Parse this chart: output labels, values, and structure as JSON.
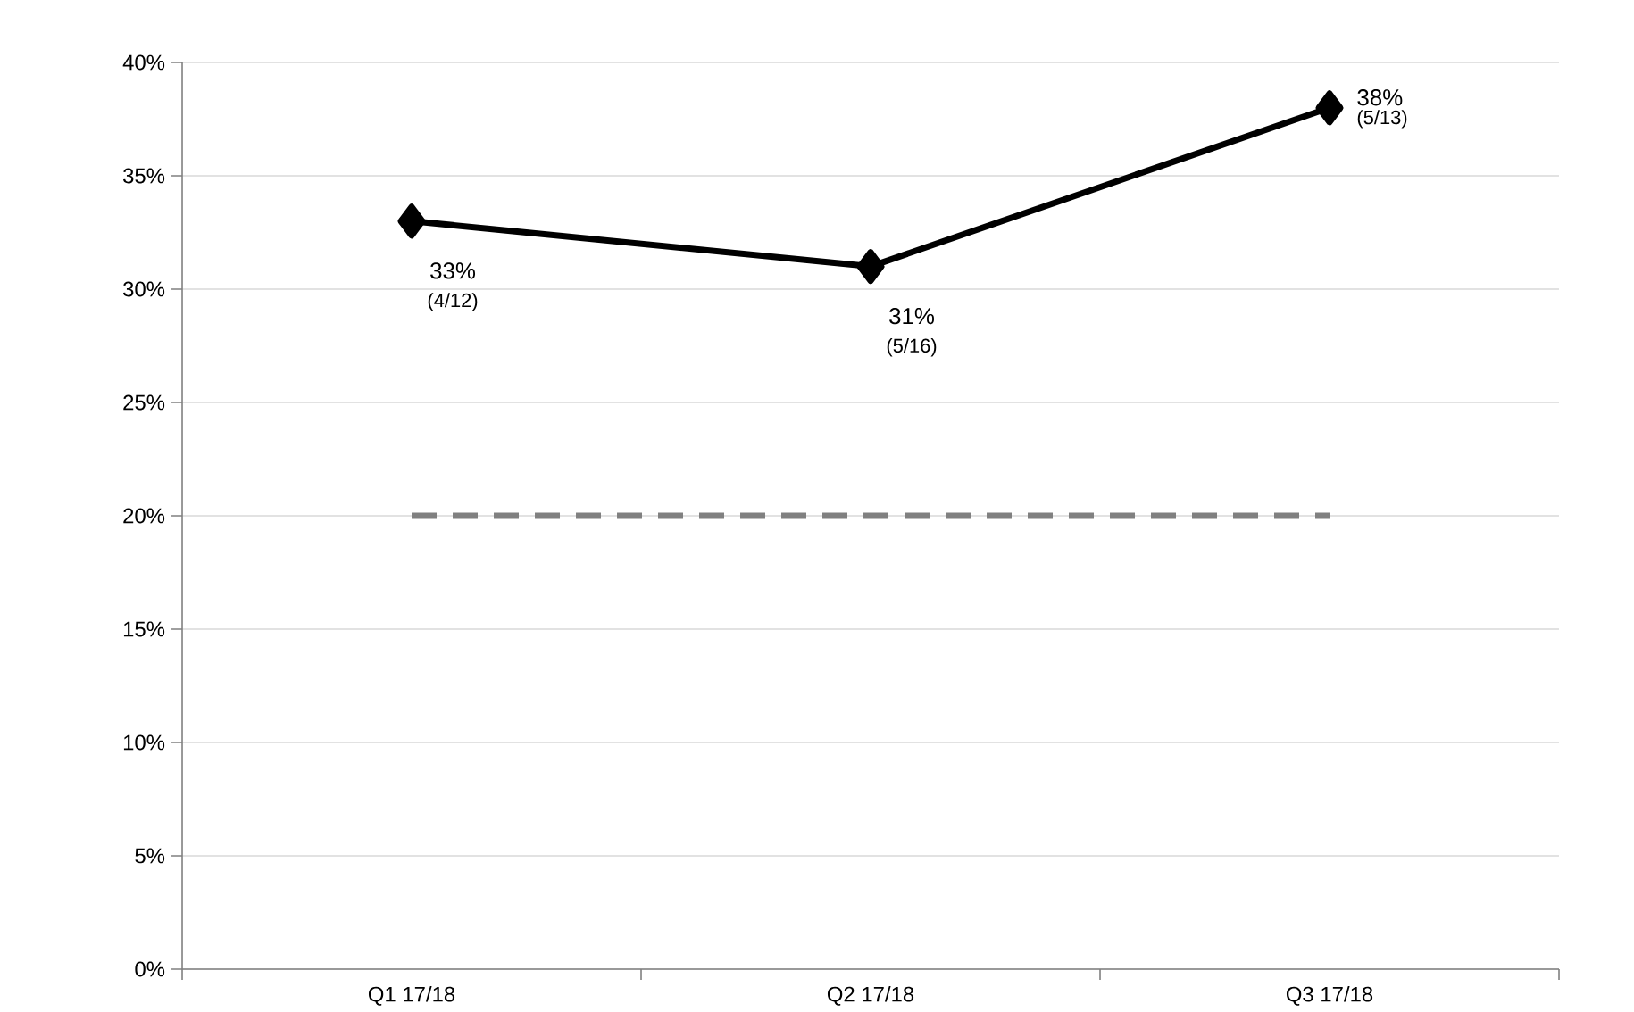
{
  "chart_data": {
    "type": "line",
    "categories": [
      "Q1 17/18",
      "Q2 17/18",
      "Q3 17/18"
    ],
    "series": [
      {
        "color": "#000000",
        "values": [
          33,
          31,
          38
        ],
        "marker": "diamond",
        "line_style": "solid",
        "value_labels": [
          "33%",
          "31%",
          "38%"
        ]
      },
      {
        "color": "#808080",
        "values": [
          20,
          20,
          20
        ],
        "marker": "none",
        "line_style": "dashed"
      }
    ],
    "ylim": [
      0,
      40
    ],
    "yticks": [
      {
        "value": 0,
        "label": "0%"
      },
      {
        "value": 5,
        "label": "5%"
      },
      {
        "value": 10,
        "label": "10%"
      },
      {
        "value": 15,
        "label": "15%"
      },
      {
        "value": 20,
        "label": "20%"
      },
      {
        "value": 25,
        "label": "25%"
      },
      {
        "value": 30,
        "label": "30%"
      },
      {
        "value": 35,
        "label": "35%"
      },
      {
        "value": 40,
        "label": "40%"
      }
    ],
    "grid": "y",
    "annotations": [
      "(4/12)",
      "(5/16)",
      "(5/13)"
    ]
  }
}
